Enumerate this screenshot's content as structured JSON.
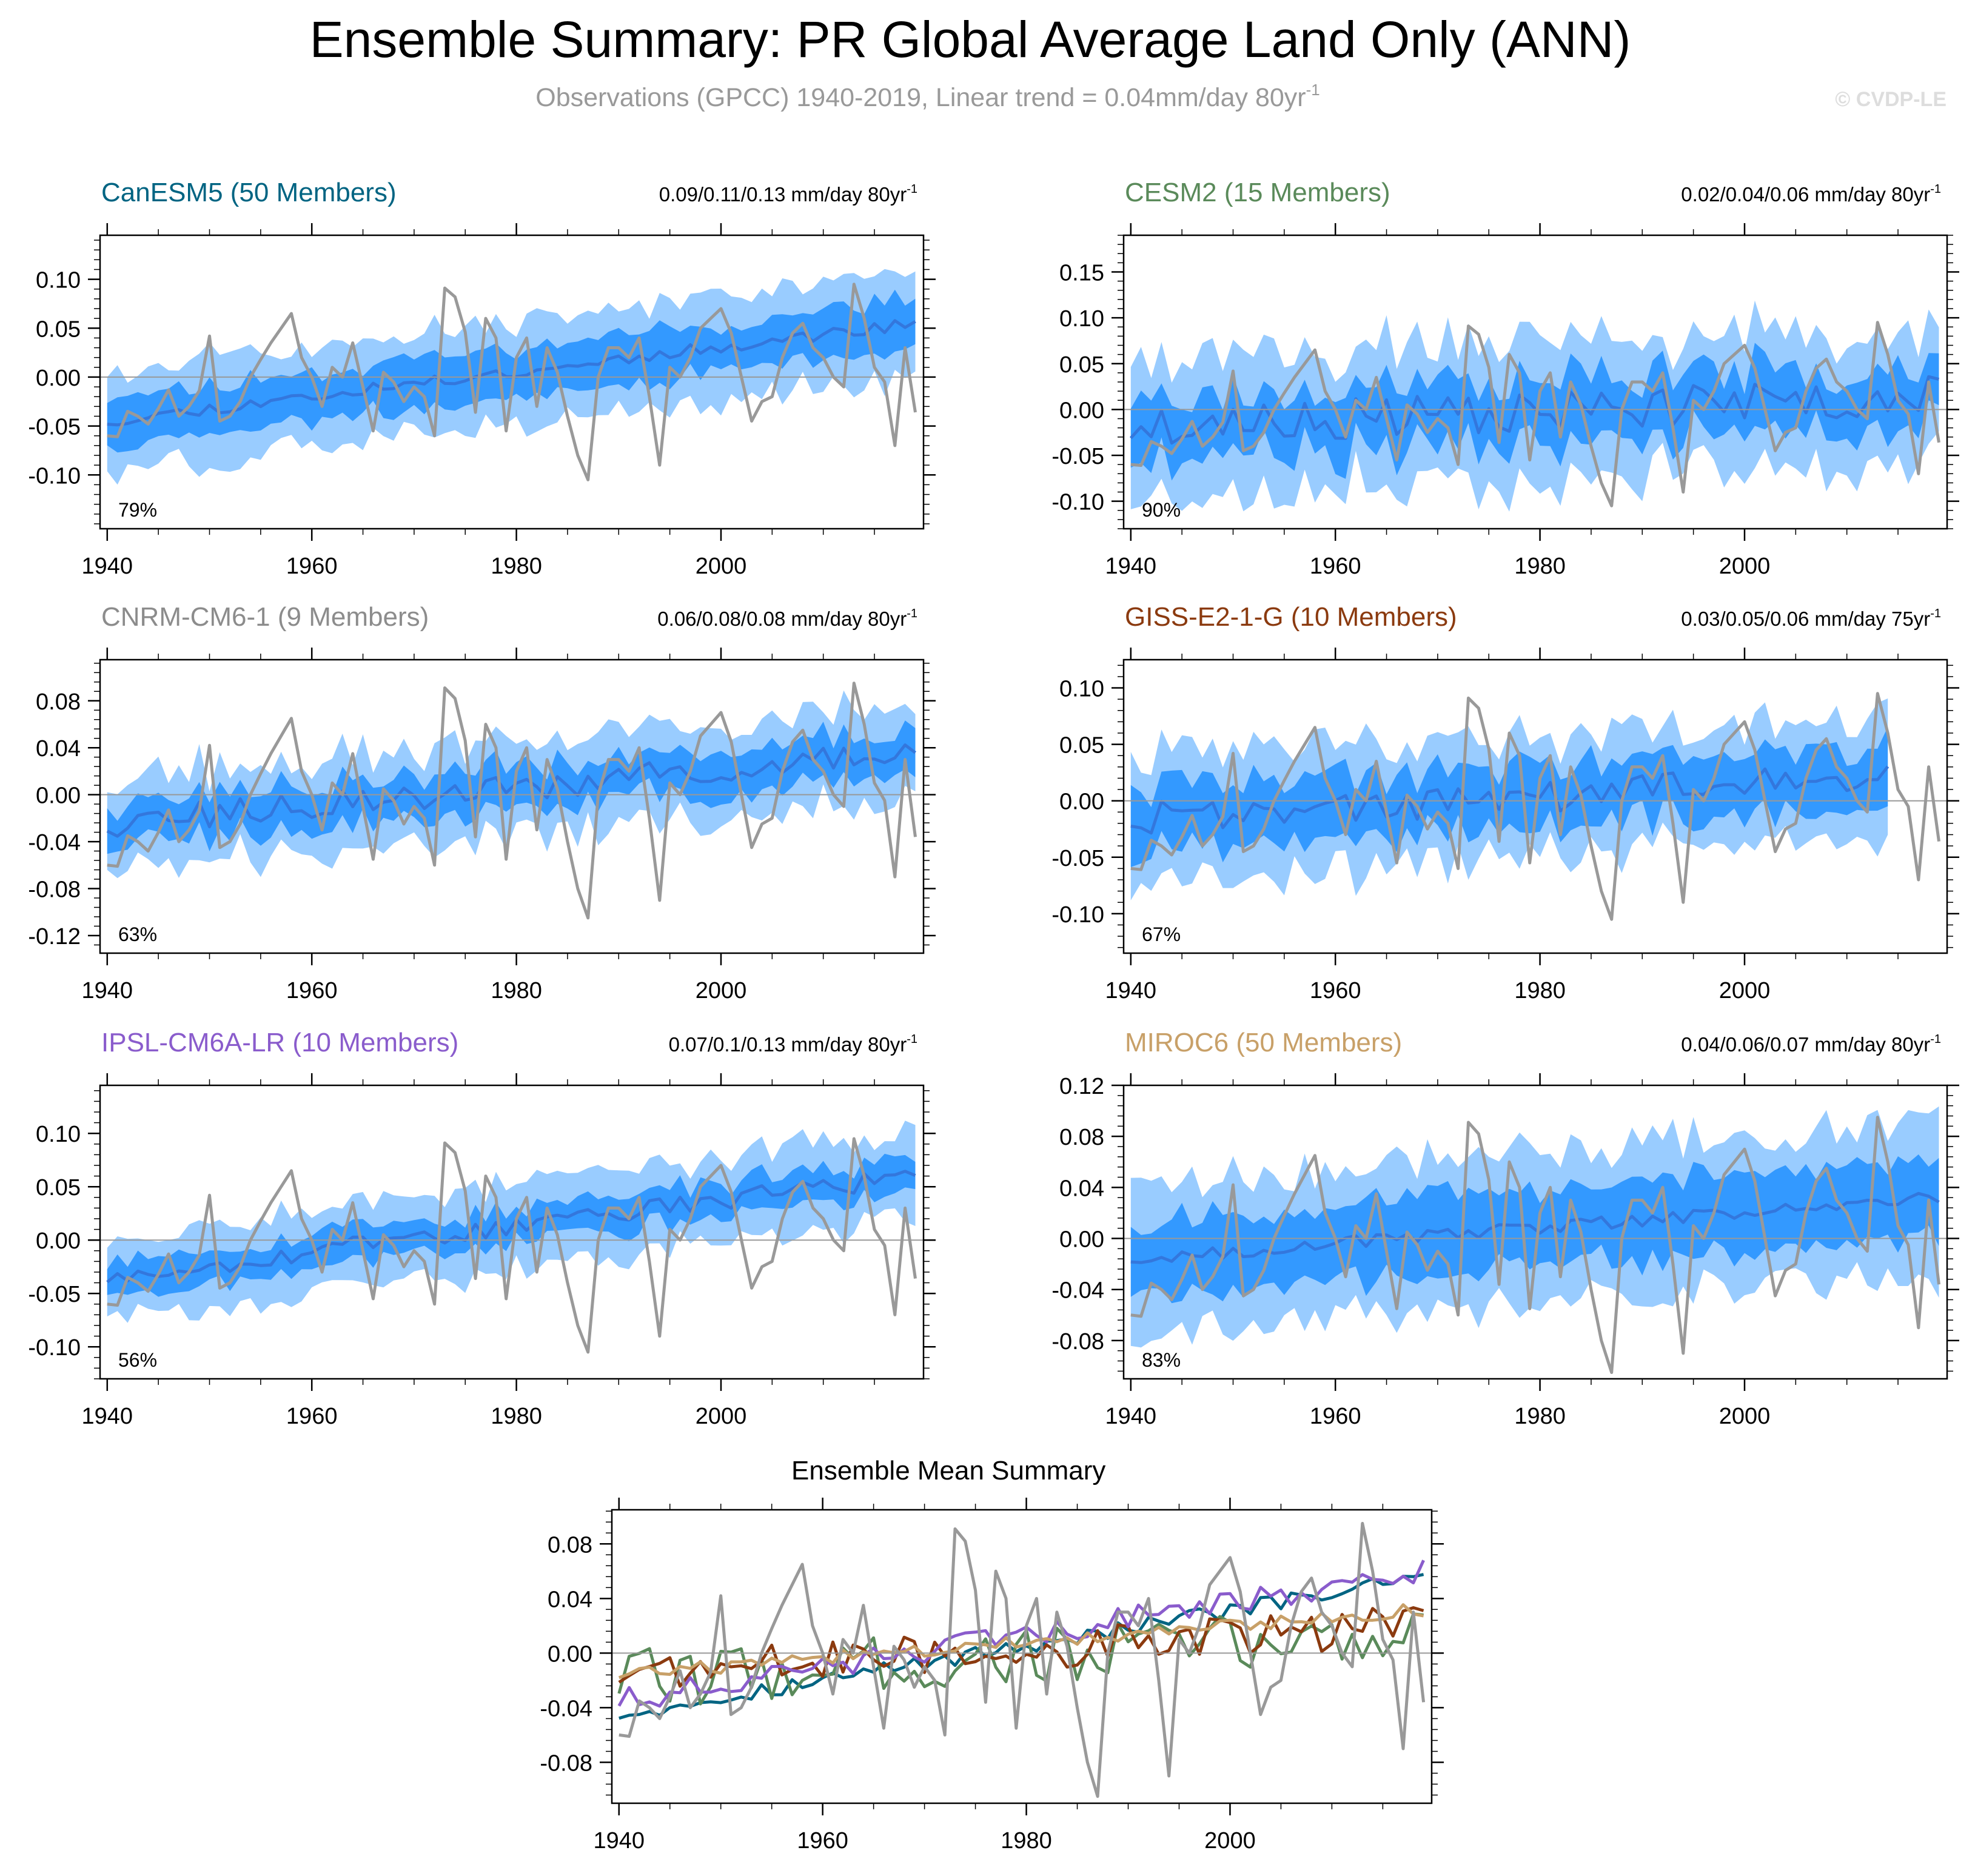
{
  "figure": {
    "title": "Ensemble Summary: PR Global Average Land Only (ANN)",
    "subtitle": "Observations (GPCC) 1940-2019, Linear trend = 0.04mm/day 80yr",
    "subtitle_sup": "-1",
    "watermark": "© CVDP-LE"
  },
  "colors": {
    "obs": "#999999",
    "band_outer": "#99ccff",
    "band_inner": "#3399ff",
    "ens_mean": "#3377dd",
    "zero_line": "#999999"
  },
  "chart_data": [
    {
      "type": "area",
      "id": "canesm5",
      "title": "CanESM5 (50 Members)",
      "title_color": "#006482",
      "trend": "0.09/0.11/0.13 mm/day 80yr",
      "trend_sup": "-1",
      "percent": "79%",
      "x_range": [
        1940,
        2019
      ],
      "ylim": [
        -0.155,
        0.145
      ],
      "yticks": [
        -0.1,
        -0.05,
        0.0,
        0.05,
        0.1
      ],
      "ytick_labels": [
        "-0.10",
        "-0.05",
        "0.00",
        "0.05",
        "0.10"
      ],
      "xticks": [
        1940,
        1960,
        1980,
        2000
      ],
      "xtick_labels": [
        "1940",
        "1960",
        "1980",
        "2000"
      ],
      "mean_start": -0.045,
      "mean_end": 0.055,
      "inner_half": 0.025,
      "outer_half": 0.052,
      "noise": 0.006,
      "seed": 11
    },
    {
      "type": "area",
      "id": "cesm2",
      "title": "CESM2 (15 Members)",
      "title_color": "#5a8a5a",
      "trend": "0.02/0.04/0.06 mm/day 80yr",
      "trend_sup": "-1",
      "percent": "90%",
      "x_range": [
        1940,
        2019
      ],
      "ylim": [
        -0.13,
        0.19
      ],
      "yticks": [
        -0.1,
        -0.05,
        0.0,
        0.05,
        0.1,
        0.15
      ],
      "ytick_labels": [
        "-0.10",
        "-0.05",
        "0.00",
        "0.05",
        "0.10",
        "0.15"
      ],
      "xticks": [
        1940,
        1960,
        1980,
        2000
      ],
      "xtick_labels": [
        "1940",
        "1960",
        "1980",
        "2000"
      ],
      "mean_start": -0.02,
      "mean_end": 0.015,
      "inner_half": 0.035,
      "outer_half": 0.075,
      "noise": 0.022,
      "seed": 23
    },
    {
      "type": "area",
      "id": "cnrm",
      "title": "CNRM-CM6-1 (9 Members)",
      "title_color": "#8c8c8c",
      "trend": "0.06/0.08/0.08 mm/day 80yr",
      "trend_sup": "-1",
      "percent": "63%",
      "x_range": [
        1940,
        2019
      ],
      "ylim": [
        -0.135,
        0.115
      ],
      "yticks": [
        -0.12,
        -0.08,
        -0.04,
        0.0,
        0.04,
        0.08
      ],
      "ytick_labels": [
        "-0.12",
        "-0.08",
        "-0.04",
        "0.00",
        "0.04",
        "0.08"
      ],
      "xticks": [
        1940,
        1960,
        1980,
        2000
      ],
      "xtick_labels": [
        "1940",
        "1960",
        "1980",
        "2000"
      ],
      "mean_start": -0.025,
      "mean_end": 0.035,
      "inner_half": 0.018,
      "outer_half": 0.04,
      "noise": 0.012,
      "seed": 37
    },
    {
      "type": "area",
      "id": "giss",
      "title": "GISS-E2-1-G (10 Members)",
      "title_color": "#8b3a0f",
      "trend": "0.03/0.05/0.06 mm/day 75yr",
      "trend_sup": "-1",
      "percent": "67%",
      "x_range": [
        1940,
        2014
      ],
      "ylim": [
        -0.135,
        0.125
      ],
      "yticks": [
        -0.1,
        -0.05,
        0.0,
        0.05,
        0.1
      ],
      "ytick_labels": [
        "-0.10",
        "-0.05",
        "0.00",
        "0.05",
        "0.10"
      ],
      "xticks": [
        1940,
        1960,
        1980,
        2000
      ],
      "xtick_labels": [
        "1940",
        "1960",
        "1980",
        "2000"
      ],
      "mean_start": -0.015,
      "mean_end": 0.02,
      "inner_half": 0.028,
      "outer_half": 0.055,
      "noise": 0.015,
      "seed": 41
    },
    {
      "type": "area",
      "id": "ipsl",
      "title": "IPSL-CM6A-LR (10 Members)",
      "title_color": "#8a5ccc",
      "trend": "0.07/0.1/0.13 mm/day 80yr",
      "trend_sup": "-1",
      "percent": "56%",
      "x_range": [
        1940,
        2019
      ],
      "ylim": [
        -0.13,
        0.145
      ],
      "yticks": [
        -0.1,
        -0.05,
        0.0,
        0.05,
        0.1
      ],
      "ytick_labels": [
        "-0.10",
        "-0.05",
        "0.00",
        "0.05",
        "0.10"
      ],
      "xticks": [
        1940,
        1960,
        1980,
        2000
      ],
      "xtick_labels": [
        "1940",
        "1960",
        "1980",
        "2000"
      ],
      "mean_start": -0.035,
      "mean_end": 0.06,
      "inner_half": 0.016,
      "outer_half": 0.04,
      "noise": 0.009,
      "seed": 53
    },
    {
      "type": "area",
      "id": "miroc6",
      "title": "MIROC6 (50 Members)",
      "title_color": "#c8a068",
      "trend": "0.04/0.06/0.07 mm/day 80yr",
      "trend_sup": "-1",
      "percent": "83%",
      "x_range": [
        1940,
        2019
      ],
      "ylim": [
        -0.11,
        0.12
      ],
      "yticks": [
        -0.08,
        -0.04,
        0.0,
        0.04,
        0.08,
        0.12
      ],
      "ytick_labels": [
        "-0.08",
        "-0.04",
        "0.00",
        "0.04",
        "0.08",
        "0.12"
      ],
      "xticks": [
        1940,
        1960,
        1980,
        2000
      ],
      "xtick_labels": [
        "1940",
        "1960",
        "1980",
        "2000"
      ],
      "mean_start": -0.016,
      "mean_end": 0.032,
      "inner_half": 0.03,
      "outer_half": 0.06,
      "noise": 0.005,
      "seed": 67
    },
    {
      "type": "line",
      "id": "ensmean",
      "title": "Ensemble Mean Summary",
      "x_range": [
        1940,
        2019
      ],
      "ylim": [
        -0.11,
        0.105
      ],
      "yticks": [
        -0.08,
        -0.04,
        0.0,
        0.04,
        0.08
      ],
      "ytick_labels": [
        "-0.08",
        "-0.04",
        "0.00",
        "0.04",
        "0.08"
      ],
      "xticks": [
        1940,
        1960,
        1980,
        2000
      ],
      "xtick_labels": [
        "1940",
        "1960",
        "1980",
        "2000"
      ],
      "series": [
        {
          "name": "CanESM5",
          "color": "#006482"
        },
        {
          "name": "CESM2",
          "color": "#5a8a5a"
        },
        {
          "name": "GISS-E2-1-G",
          "color": "#8b3a0f"
        },
        {
          "name": "IPSL-CM6A-LR",
          "color": "#8a5ccc"
        },
        {
          "name": "MIROC6",
          "color": "#c8a068"
        }
      ]
    }
  ],
  "observations": {
    "name": "GPCC",
    "years_start": 1940,
    "values": [
      -0.06,
      -0.061,
      -0.035,
      -0.04,
      -0.048,
      -0.032,
      -0.013,
      -0.04,
      -0.03,
      -0.014,
      0.042,
      -0.045,
      -0.04,
      -0.025,
      0.0,
      0.018,
      0.035,
      0.05,
      0.065,
      0.02,
      0.0,
      -0.03,
      0.01,
      0.0,
      0.035,
      -0.01,
      -0.055,
      0.005,
      -0.005,
      -0.025,
      -0.01,
      -0.02,
      -0.06,
      0.091,
      0.082,
      0.046,
      -0.036,
      0.06,
      0.04,
      -0.055,
      0.02,
      0.04,
      -0.03,
      0.03,
      0.005,
      -0.04,
      -0.08,
      -0.105,
      0.0,
      0.03,
      0.03,
      0.02,
      0.04,
      -0.02,
      -0.09,
      0.01,
      0.0,
      0.02,
      0.05,
      0.06,
      0.07,
      0.045,
      0.0,
      -0.045,
      -0.025,
      -0.02,
      0.02,
      0.045,
      0.055,
      0.03,
      0.02,
      0.0,
      -0.01,
      0.095,
      0.06,
      0.01,
      -0.005,
      -0.07,
      0.03,
      -0.036
    ]
  },
  "model_extra": [
    [
      0.0,
      0.0,
      0.0,
      0.0,
      0.0,
      0.0,
      0.0,
      0.0,
      0.0,
      0.0,
      0.0,
      0.0,
      0.0,
      0.0,
      0.0,
      0.0,
      0.0,
      0.0,
      0.0,
      0.0,
      0.0,
      0.0,
      0.0,
      0.0,
      0.0,
      0.0,
      0.0,
      0.0,
      0.0,
      0.0,
      0.0,
      0.0,
      0.0,
      0.0,
      0.0,
      0.0,
      0.0,
      0.0,
      0.0,
      0.0,
      0.0,
      0.0,
      0.0,
      0.0,
      0.0,
      0.0,
      0.0,
      0.0,
      0.0,
      0.0,
      0.0,
      0.0,
      0.0,
      0.0,
      0.0,
      0.0,
      0.0,
      0.0,
      0.0,
      0.0,
      0.0,
      0.0,
      0.0,
      0.0,
      0.0,
      0.0,
      0.0,
      0.0,
      0.0,
      0.0,
      0.0,
      0.0,
      0.0,
      0.0,
      0.0,
      0.0,
      0.0,
      0.0,
      0.0,
      0.0
    ]
  ]
}
